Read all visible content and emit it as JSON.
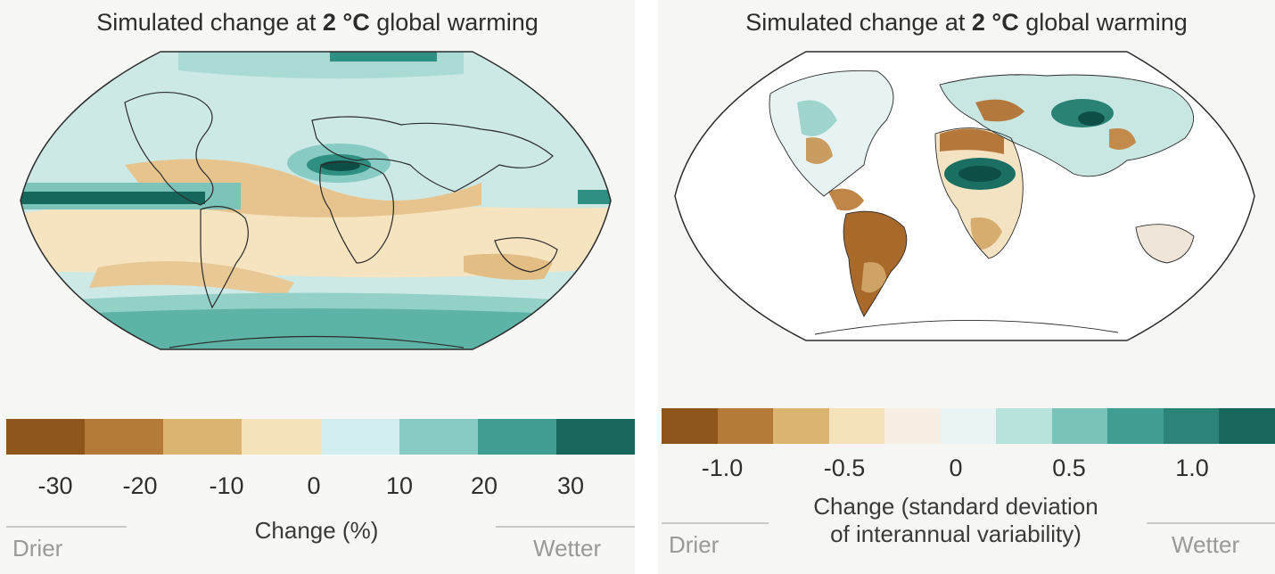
{
  "panels": [
    {
      "title_prefix": "Simulated change at ",
      "title_bold": "2 °C",
      "title_suffix": " global warming",
      "colorbar_colors": [
        "#8f561c",
        "#b57a3a",
        "#dbb472",
        "#f5e2bb",
        "#d3eeee",
        "#88cbc4",
        "#3f9e91",
        "#17675d"
      ],
      "ticks": [
        "-30",
        "-20",
        "-10",
        "0",
        "10",
        "20",
        "30"
      ],
      "axis_label": "Change (%)",
      "left_label": "Drier",
      "right_label": "Wetter",
      "ocean_base_color": "#cde9e6"
    },
    {
      "title_prefix": "Simulated change at ",
      "title_bold": "2 °C",
      "title_suffix": " global warming",
      "colorbar_colors": [
        "#8f561c",
        "#b57a3a",
        "#dbb472",
        "#f5e2bb",
        "#f7efe3",
        "#eaf4f4",
        "#b8e2dc",
        "#7ac3b8",
        "#3f9e91",
        "#2c8478",
        "#17675d"
      ],
      "ticks": [
        "-1.0",
        "-0.5",
        "0",
        "0.5",
        "1.0"
      ],
      "axis_label_line1": "Change (standard deviation",
      "axis_label_line2": "of interannual variability)",
      "left_label": "Drier",
      "right_label": "Wetter",
      "ocean_base_color": "#ffffff"
    }
  ]
}
